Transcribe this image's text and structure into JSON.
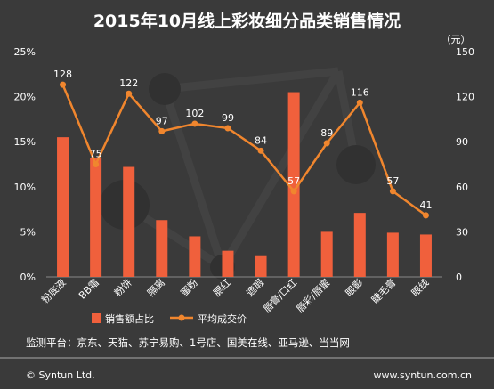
{
  "chart_data": {
    "type": "bar",
    "title": "2015年10月线上彩妆细分品类销售情况",
    "right_axis_unit": "（元）",
    "categories": [
      "粉底液",
      "BB霜",
      "粉饼",
      "隔离",
      "蜜粉",
      "腮红",
      "遮瑕",
      "唇膏/口红",
      "唇彩/唇蜜",
      "眼影",
      "睫毛膏",
      "眼线"
    ],
    "left_axis": {
      "range": [
        0,
        25
      ],
      "ticks": [
        "0%",
        "5%",
        "10%",
        "15%",
        "20%",
        "25%"
      ]
    },
    "right_axis": {
      "range": [
        0,
        150
      ],
      "ticks": [
        "0",
        "30",
        "60",
        "90",
        "120",
        "150"
      ]
    },
    "series": [
      {
        "name": "销售额占比",
        "type": "bar",
        "axis": "left",
        "color": "#f0603c",
        "values": [
          15.5,
          13.2,
          12.2,
          6.3,
          4.5,
          2.9,
          2.3,
          20.5,
          5.0,
          7.1,
          4.9,
          4.7
        ]
      },
      {
        "name": "平均成交价",
        "type": "line",
        "axis": "right",
        "color": "#f0862e",
        "values": [
          128,
          75,
          122,
          97,
          102,
          99,
          84,
          57,
          89,
          116,
          57,
          41
        ]
      }
    ],
    "legend_position": "bottom",
    "grid": false
  },
  "footer": {
    "sources": "监测平台：京东、天猫、苏宁易购、1号店、国美在线、亚马逊、当当网",
    "copyright": "© Syntun Ltd.",
    "website": "www.syntun.com.cn"
  }
}
